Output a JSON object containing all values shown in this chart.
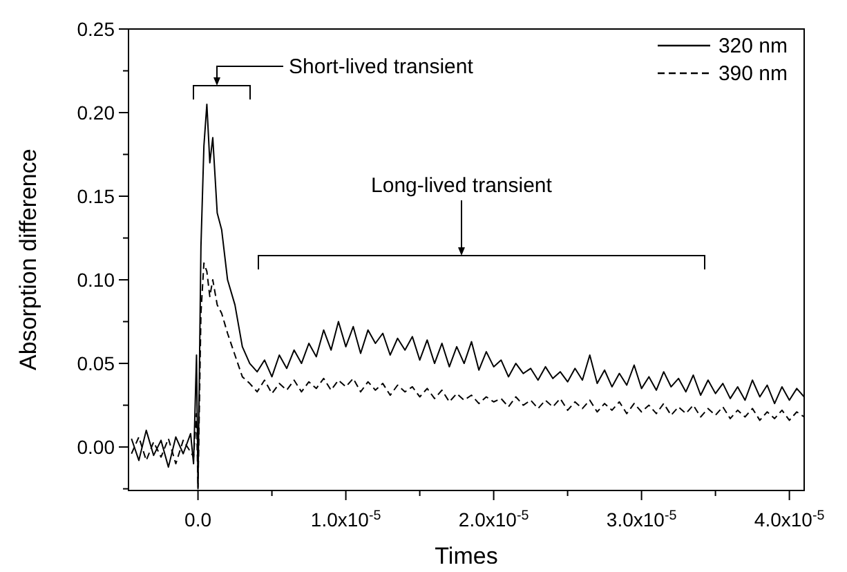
{
  "chart_data": {
    "type": "line",
    "xlabel": "Times",
    "ylabel": "Absorption difference",
    "x": [
      -4.5e-06,
      -4e-06,
      -3.5e-06,
      -3e-06,
      -2.5e-06,
      -2e-06,
      -1.5e-06,
      -1e-06,
      -5e-07,
      -3e-07,
      -1e-07,
      0,
      2e-07,
      4e-07,
      6e-07,
      8e-07,
      1e-06,
      1.3e-06,
      1.6e-06,
      2e-06,
      2.5e-06,
      3e-06,
      3.5e-06,
      4e-06,
      4.5e-06,
      5e-06,
      5.5e-06,
      6e-06,
      6.5e-06,
      7e-06,
      7.5e-06,
      8e-06,
      8.5e-06,
      9e-06,
      9.5e-06,
      1e-05,
      1.05e-05,
      1.1e-05,
      1.15e-05,
      1.2e-05,
      1.25e-05,
      1.3e-05,
      1.35e-05,
      1.4e-05,
      1.45e-05,
      1.5e-05,
      1.55e-05,
      1.6e-05,
      1.65e-05,
      1.7e-05,
      1.75e-05,
      1.8e-05,
      1.85e-05,
      1.9e-05,
      1.95e-05,
      2e-05,
      2.05e-05,
      2.1e-05,
      2.15e-05,
      2.2e-05,
      2.25e-05,
      2.3e-05,
      2.35e-05,
      2.4e-05,
      2.45e-05,
      2.5e-05,
      2.55e-05,
      2.6e-05,
      2.65e-05,
      2.7e-05,
      2.75e-05,
      2.8e-05,
      2.85e-05,
      2.9e-05,
      2.95e-05,
      3e-05,
      3.05e-05,
      3.1e-05,
      3.15e-05,
      3.2e-05,
      3.25e-05,
      3.3e-05,
      3.35e-05,
      3.4e-05,
      3.45e-05,
      3.5e-05,
      3.55e-05,
      3.6e-05,
      3.65e-05,
      3.7e-05,
      3.75e-05,
      3.8e-05,
      3.85e-05,
      3.9e-05,
      3.95e-05,
      4e-05,
      4.05e-05,
      4.1e-05
    ],
    "series": [
      {
        "name": "320 nm",
        "color": "#000000",
        "line_style": "solid",
        "values": [
          0.005,
          -0.008,
          0.01,
          -0.005,
          0.004,
          -0.012,
          0.006,
          -0.004,
          0.008,
          -0.01,
          0.055,
          -0.024,
          0.12,
          0.18,
          0.205,
          0.17,
          0.185,
          0.14,
          0.13,
          0.1,
          0.085,
          0.06,
          0.05,
          0.045,
          0.052,
          0.042,
          0.055,
          0.047,
          0.058,
          0.05,
          0.062,
          0.054,
          0.07,
          0.058,
          0.075,
          0.06,
          0.072,
          0.056,
          0.07,
          0.062,
          0.068,
          0.055,
          0.065,
          0.058,
          0.066,
          0.052,
          0.064,
          0.05,
          0.062,
          0.048,
          0.06,
          0.05,
          0.063,
          0.046,
          0.057,
          0.048,
          0.052,
          0.042,
          0.05,
          0.044,
          0.047,
          0.04,
          0.048,
          0.041,
          0.045,
          0.039,
          0.047,
          0.04,
          0.055,
          0.038,
          0.046,
          0.036,
          0.044,
          0.037,
          0.049,
          0.035,
          0.042,
          0.034,
          0.045,
          0.036,
          0.041,
          0.033,
          0.043,
          0.031,
          0.04,
          0.032,
          0.038,
          0.029,
          0.036,
          0.028,
          0.04,
          0.03,
          0.037,
          0.026,
          0.036,
          0.028,
          0.035,
          0.03
        ]
      },
      {
        "name": "390 nm",
        "color": "#000000",
        "line_style": "dashed",
        "values": [
          -0.004,
          0.006,
          -0.008,
          0.003,
          -0.006,
          0.005,
          -0.01,
          0.004,
          -0.003,
          -0.006,
          0.02,
          -0.025,
          0.08,
          0.11,
          0.105,
          0.09,
          0.1,
          0.085,
          0.08,
          0.068,
          0.055,
          0.042,
          0.038,
          0.033,
          0.04,
          0.032,
          0.038,
          0.034,
          0.04,
          0.033,
          0.039,
          0.035,
          0.041,
          0.034,
          0.04,
          0.036,
          0.041,
          0.033,
          0.039,
          0.034,
          0.038,
          0.031,
          0.037,
          0.033,
          0.036,
          0.03,
          0.035,
          0.029,
          0.034,
          0.027,
          0.032,
          0.028,
          0.031,
          0.026,
          0.03,
          0.027,
          0.029,
          0.024,
          0.03,
          0.025,
          0.028,
          0.023,
          0.028,
          0.024,
          0.029,
          0.022,
          0.027,
          0.023,
          0.028,
          0.021,
          0.026,
          0.022,
          0.027,
          0.02,
          0.026,
          0.021,
          0.025,
          0.02,
          0.026,
          0.019,
          0.024,
          0.02,
          0.025,
          0.018,
          0.023,
          0.019,
          0.024,
          0.017,
          0.022,
          0.018,
          0.023,
          0.016,
          0.021,
          0.017,
          0.022,
          0.016,
          0.021,
          0.018
        ]
      }
    ],
    "xlim": [
      -4.7e-06,
      4.1e-05
    ],
    "xticks": [
      {
        "value": 0,
        "label": "0.0"
      },
      {
        "value": 5e-06,
        "label": null
      },
      {
        "value": 1e-05,
        "label": "1.0x10$^{-5}$"
      },
      {
        "value": 1.5e-05,
        "label": null
      },
      {
        "value": 2e-05,
        "label": "2.0x10$^{-5}$"
      },
      {
        "value": 2.5e-05,
        "label": null
      },
      {
        "value": 3e-05,
        "label": "3.0x10$^{-5}$"
      },
      {
        "value": 3.5e-05,
        "label": null
      },
      {
        "value": 4e-05,
        "label": "4.0x10$^{-5}$"
      }
    ],
    "ylim": [
      -0.026,
      0.25
    ],
    "yticks": [
      {
        "value": -0.025,
        "label": null
      },
      {
        "value": 0,
        "label": "0.00"
      },
      {
        "value": 0.025,
        "label": null
      },
      {
        "value": 0.05,
        "label": "0.05"
      },
      {
        "value": 0.075,
        "label": null
      },
      {
        "value": 0.1,
        "label": "0.10"
      },
      {
        "value": 0.125,
        "label": null
      },
      {
        "value": 0.15,
        "label": "0.15"
      },
      {
        "value": 0.175,
        "label": null
      },
      {
        "value": 0.2,
        "label": "0.20"
      },
      {
        "value": 0.225,
        "label": null
      },
      {
        "value": 0.25,
        "label": "0.25"
      }
    ],
    "grid": false,
    "legend": "top right",
    "marker": "none",
    "annotations": [
      "Short-lived transient",
      "Long-lived transient"
    ]
  }
}
